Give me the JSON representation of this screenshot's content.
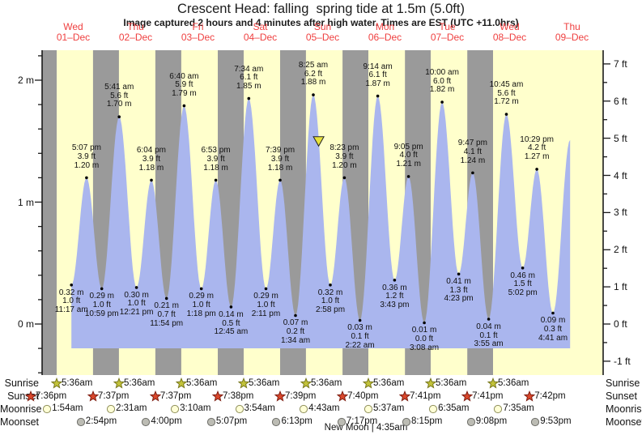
{
  "title": "Crescent Head: falling  spring tide at 1.5m (5.0ft)",
  "subtitle": "Image captured 2 hours and 4 minutes after high water. Times are EST (UTC +11.0hrs)",
  "colors": {
    "day_band": "#ffffcc",
    "night_band": "#9a9a9a",
    "tide_fill": "#aab6ee",
    "day_label": "#ef4040",
    "axis": "#1a1a1a",
    "current_marker": "#e8e23c"
  },
  "chart_data": {
    "type": "area",
    "title": "Crescent Head: falling  spring tide at 1.5m (5.0ft)",
    "x_axis": {
      "days": [
        {
          "name": "Wed",
          "date": "01–Dec"
        },
        {
          "name": "Thu",
          "date": "02–Dec"
        },
        {
          "name": "Fri",
          "date": "03–Dec"
        },
        {
          "name": "Sat",
          "date": "04–Dec"
        },
        {
          "name": "Sun",
          "date": "05–Dec"
        },
        {
          "name": "Mon",
          "date": "06–Dec"
        },
        {
          "name": "Tue",
          "date": "07–Dec"
        },
        {
          "name": "Wed",
          "date": "08–Dec"
        },
        {
          "name": "Thu",
          "date": "09–Dec"
        }
      ]
    },
    "y_axis": {
      "left_unit": "m",
      "left_ticks": [
        {
          "v": 0,
          "label": "0 m"
        },
        {
          "v": 1,
          "label": "1 m"
        },
        {
          "v": 2,
          "label": "2 m"
        }
      ],
      "right_unit": "ft",
      "right_ticks": [
        {
          "v": -1,
          "label": "-1 ft"
        },
        {
          "v": 0,
          "label": "0 ft"
        },
        {
          "v": 1,
          "label": "1 ft"
        },
        {
          "v": 2,
          "label": "2 ft"
        },
        {
          "v": 3,
          "label": "3 ft"
        },
        {
          "v": 4,
          "label": "4 ft"
        },
        {
          "v": 5,
          "label": "5 ft"
        },
        {
          "v": 6,
          "label": "6 ft"
        },
        {
          "v": 7,
          "label": "7 ft"
        }
      ]
    },
    "events": [
      {
        "type": "low",
        "day": 0,
        "time": "11:17 am",
        "ft": "1.0",
        "m": "0.32"
      },
      {
        "type": "high",
        "day": 0,
        "time": "5:07 pm",
        "ft": "3.9",
        "m": "1.20"
      },
      {
        "type": "low",
        "day": 0,
        "time": "10:59 pm",
        "ft": "1.0",
        "m": "0.29"
      },
      {
        "type": "high",
        "day": 1,
        "time": "5:41 am",
        "ft": "5.6",
        "m": "1.70"
      },
      {
        "type": "low",
        "day": 1,
        "time": "12:21 pm",
        "ft": "1.0",
        "m": "0.30"
      },
      {
        "type": "high",
        "day": 1,
        "time": "6:04 pm",
        "ft": "3.9",
        "m": "1.18"
      },
      {
        "type": "low",
        "day": 1,
        "time": "11:54 pm",
        "ft": "0.7",
        "m": "0.21"
      },
      {
        "type": "high",
        "day": 2,
        "time": "6:40 am",
        "ft": "5.9",
        "m": "1.79"
      },
      {
        "type": "low",
        "day": 2,
        "time": "1:18 pm",
        "ft": "1.0",
        "m": "0.29"
      },
      {
        "type": "high",
        "day": 2,
        "time": "6:53 pm",
        "ft": "3.9",
        "m": "1.18"
      },
      {
        "type": "low",
        "day": 3,
        "time": "12:45 am",
        "ft": "0.5",
        "m": "0.14"
      },
      {
        "type": "high",
        "day": 3,
        "time": "7:34 am",
        "ft": "6.1",
        "m": "1.85"
      },
      {
        "type": "low",
        "day": 3,
        "time": "2:11 pm",
        "ft": "1.0",
        "m": "0.29"
      },
      {
        "type": "high",
        "day": 3,
        "time": "7:39 pm",
        "ft": "3.9",
        "m": "1.18"
      },
      {
        "type": "low",
        "day": 4,
        "time": "1:34 am",
        "ft": "0.2",
        "m": "0.07"
      },
      {
        "type": "high",
        "day": 4,
        "time": "8:25 am",
        "ft": "6.2",
        "m": "1.88"
      },
      {
        "type": "low",
        "day": 4,
        "time": "2:58 pm",
        "ft": "1.0",
        "m": "0.32"
      },
      {
        "type": "high",
        "day": 4,
        "time": "8:23 pm",
        "ft": "3.9",
        "m": "1.20"
      },
      {
        "type": "low",
        "day": 5,
        "time": "2:22 am",
        "ft": "0.1",
        "m": "0.03"
      },
      {
        "type": "high",
        "day": 5,
        "time": "9:14 am",
        "ft": "6.1",
        "m": "1.87"
      },
      {
        "type": "low",
        "day": 5,
        "time": "3:43 pm",
        "ft": "1.2",
        "m": "0.36"
      },
      {
        "type": "high",
        "day": 5,
        "time": "9:05 pm",
        "ft": "4.0",
        "m": "1.21"
      },
      {
        "type": "low",
        "day": 6,
        "time": "3:08 am",
        "ft": "0.0",
        "m": "0.01"
      },
      {
        "type": "high",
        "day": 6,
        "time": "10:00 am",
        "ft": "6.0",
        "m": "1.82"
      },
      {
        "type": "low",
        "day": 6,
        "time": "4:23 pm",
        "ft": "1.3",
        "m": "0.41"
      },
      {
        "type": "high",
        "day": 6,
        "time": "9:47 pm",
        "ft": "4.1",
        "m": "1.24"
      },
      {
        "type": "low",
        "day": 7,
        "time": "3:55 am",
        "ft": "0.1",
        "m": "0.04"
      },
      {
        "type": "high",
        "day": 7,
        "time": "10:45 am",
        "ft": "5.6",
        "m": "1.72"
      },
      {
        "type": "low",
        "day": 7,
        "time": "5:02 pm",
        "ft": "1.5",
        "m": "0.46"
      },
      {
        "type": "high",
        "day": 7,
        "time": "10:29 pm",
        "ft": "4.2",
        "m": "1.27"
      },
      {
        "type": "low",
        "day": 8,
        "time": "4:41 am",
        "ft": "0.3",
        "m": "0.09"
      },
      {
        "type": "high",
        "day": 8,
        "time": "11:17 am",
        "ft": "",
        "m": "1.51",
        "labeled": false
      }
    ],
    "current_marker": {
      "position_days": 4.437,
      "level_m": 1.5
    }
  },
  "astro": {
    "rows": [
      {
        "id": "sunrise",
        "label": "Sunrise",
        "day_offset": 0,
        "marker": {
          "shape": "star",
          "fill": "#c2c23a",
          "stroke": "#77771c"
        },
        "items": [
          "5:36am",
          "5:36am",
          "5:36am",
          "5:36am",
          "5:36am",
          "5:36am",
          "5:36am",
          "5:36am"
        ]
      },
      {
        "id": "sunset",
        "label": "Sunset",
        "day_offset": -1,
        "marker": {
          "shape": "star",
          "fill": "#d9472b",
          "stroke": "#7e1e12"
        },
        "items": [
          "7:36pm",
          "7:37pm",
          "7:37pm",
          "7:38pm",
          "7:39pm",
          "7:40pm",
          "7:41pm",
          "7:41pm",
          "7:42pm"
        ]
      },
      {
        "id": "moonrise",
        "label": "Moonrise",
        "day_offset": 0,
        "marker": {
          "shape": "circle",
          "fill": "#ffffd6",
          "stroke": "#90905c"
        },
        "items": [
          "1:54am",
          "2:31am",
          "3:10am",
          "3:54am",
          "4:43am",
          "5:37am",
          "6:35am",
          "7:35am"
        ]
      },
      {
        "id": "moonset",
        "label": "Moonset",
        "day_offset": 0,
        "marker": {
          "shape": "circle",
          "fill": "#bcbcb4",
          "stroke": "#6f6f6a"
        },
        "items": [
          "2:54pm",
          "4:00pm",
          "5:07pm",
          "6:13pm",
          "7:17pm",
          "8:15pm",
          "9:08pm",
          "9:53pm"
        ]
      }
    ],
    "new_moon": "New Moon | 4:35am"
  }
}
